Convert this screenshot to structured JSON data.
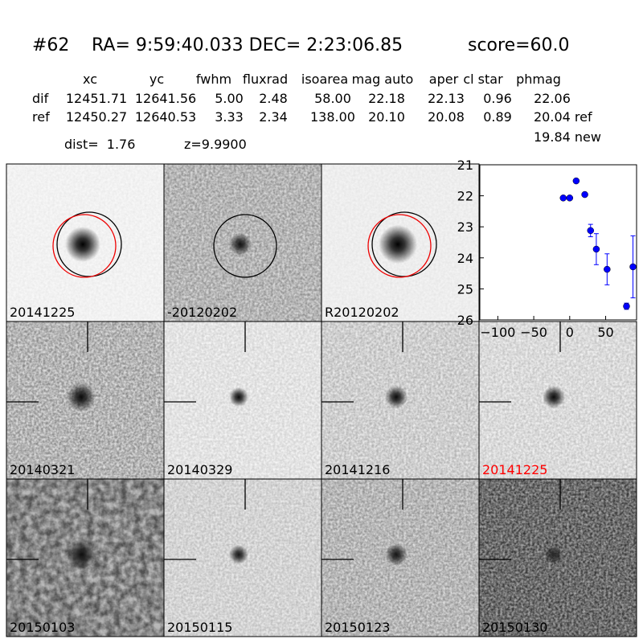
{
  "header": {
    "id": "#62",
    "coords": "RA= 9:59:40.033 DEC= 2:23:06.85",
    "score": "score=60.0"
  },
  "table": {
    "columns": [
      "xc",
      "yc",
      "fwhm",
      "fluxrad",
      "isoarea",
      "mag auto",
      "aper",
      "cl star",
      "phmag"
    ],
    "rows": [
      {
        "label": "dif",
        "cells": [
          "12451.71",
          "12641.56",
          "5.00",
          "2.48",
          "58.00",
          "22.18",
          "22.13",
          "0.96",
          "22.06"
        ]
      },
      {
        "label": "ref",
        "cells": [
          "12450.27",
          "12640.53",
          "3.33",
          "2.34",
          "138.00",
          "20.10",
          "20.08",
          "0.89",
          "20.04 ref"
        ]
      }
    ],
    "dist": "dist=  1.76",
    "z": "z=9.9900",
    "new_mag": "19.84 new"
  },
  "panels": [
    {
      "label": "20141225",
      "color": "#000000"
    },
    {
      "label": "-20120202",
      "color": "#000000"
    },
    {
      "label": "R20120202",
      "color": "#000000"
    },
    {
      "label": "20140321",
      "color": "#000000"
    },
    {
      "label": "20140329",
      "color": "#000000"
    },
    {
      "label": "20141216",
      "color": "#000000"
    },
    {
      "label": "20141225",
      "color": "#ff0000"
    },
    {
      "label": "20150103",
      "color": "#000000"
    },
    {
      "label": "20150115",
      "color": "#000000"
    },
    {
      "label": "20150123",
      "color": "#000000"
    },
    {
      "label": "20150130",
      "color": "#000000"
    }
  ],
  "chart_data": {
    "type": "scatter",
    "color": "#0000ff",
    "x": [
      -9,
      0,
      9,
      21,
      29,
      37,
      52,
      79,
      88
    ],
    "values": [
      22.07,
      22.07,
      21.52,
      21.96,
      23.12,
      23.72,
      24.37,
      25.56,
      24.29
    ],
    "errors": [
      0.05,
      0.05,
      0.05,
      0.05,
      0.2,
      0.5,
      0.5,
      0.1,
      1.0
    ],
    "xlim": [
      -125,
      93
    ],
    "ylim": [
      26,
      21
    ],
    "xticks": [
      {
        "value": -100,
        "label": "−100"
      },
      {
        "value": -50,
        "label": "−50"
      },
      0,
      50
    ],
    "yticks": [
      21,
      22,
      23,
      24,
      25,
      26
    ]
  }
}
